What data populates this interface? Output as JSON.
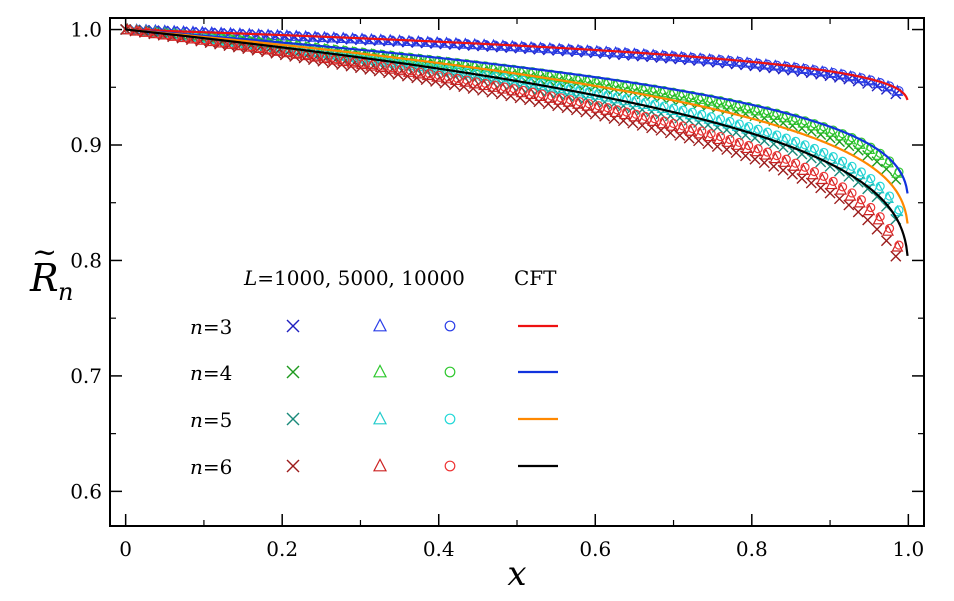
{
  "chart_data": {
    "type": "scatter",
    "title": "",
    "xlabel": "x",
    "ylabel_base": "R",
    "ylabel_sub": "n",
    "ylabel_accent": "~",
    "xlim": [
      -0.02,
      1.02
    ],
    "ylim": [
      0.57,
      1.01
    ],
    "xticks": [
      0,
      0.2,
      0.4,
      0.6,
      0.8,
      1.0
    ],
    "xtick_labels": [
      "0",
      "0.2",
      "0.4",
      "0.6",
      "0.8",
      "1.0"
    ],
    "yticks": [
      0.6,
      0.7,
      0.8,
      0.9,
      1.0
    ],
    "ytick_labels": [
      "0.6",
      "0.7",
      "0.8",
      "0.9",
      "1.0"
    ],
    "legend": {
      "header_L": "L",
      "header_sizes": "=1000, 5000, 10000",
      "header_cft": "CFT",
      "rows": [
        {
          "n_var": "n",
          "n_val": "=3"
        },
        {
          "n_var": "n",
          "n_val": "=4"
        },
        {
          "n_var": "n",
          "n_val": "=5"
        },
        {
          "n_var": "n",
          "n_val": "=6"
        }
      ]
    },
    "marker_sizes": [
      "L=1000",
      "L=5000",
      "L=10000"
    ],
    "marker_shapes": [
      "x",
      "triangle",
      "circle"
    ],
    "series": [
      {
        "n": 3,
        "a": 0.061,
        "b": 0.005,
        "c": 0.004,
        "d": 0.003,
        "cft_exp": 0.33,
        "marker_colors": [
          "#2020c0",
          "#2b3ee8",
          "#2b3ee8"
        ],
        "cft_color": "#ee1111"
      },
      {
        "n": 4,
        "a": 0.142,
        "b": 0.03,
        "c": 0.022,
        "d": 0.015,
        "cft_exp": 0.33,
        "marker_colors": [
          "#1e9a1e",
          "#2ec82e",
          "#2ec82e"
        ],
        "cft_color": "#1133dd"
      },
      {
        "n": 5,
        "a": 0.18,
        "b": 0.028,
        "c": 0.018,
        "d": 0.012,
        "cft_exp": 0.33,
        "marker_colors": [
          "#1a8a7a",
          "#22cccc",
          "#22d8d8"
        ],
        "cft_color": "#ff8800"
      },
      {
        "n": 6,
        "a": 0.215,
        "b": 0.035,
        "c": 0.022,
        "d": 0.015,
        "cft_exp": 0.33,
        "marker_colors": [
          "#9b1c1c",
          "#cc2222",
          "#ee3333"
        ],
        "cft_color": "#000000"
      }
    ],
    "cft_curves": [
      {
        "n": 3,
        "a": 0.061,
        "exp": 0.33,
        "color": "#ee1111"
      },
      {
        "n": 4,
        "a": 0.142,
        "exp": 0.33,
        "color": "#1133dd"
      },
      {
        "n": 5,
        "a": 0.168,
        "exp": 0.33,
        "color": "#ff8800"
      },
      {
        "n": 6,
        "a": 0.196,
        "exp": 0.33,
        "color": "#000000"
      }
    ],
    "x_samples": {
      "start": 0.0,
      "stop": 0.996,
      "step": 0.012
    }
  }
}
